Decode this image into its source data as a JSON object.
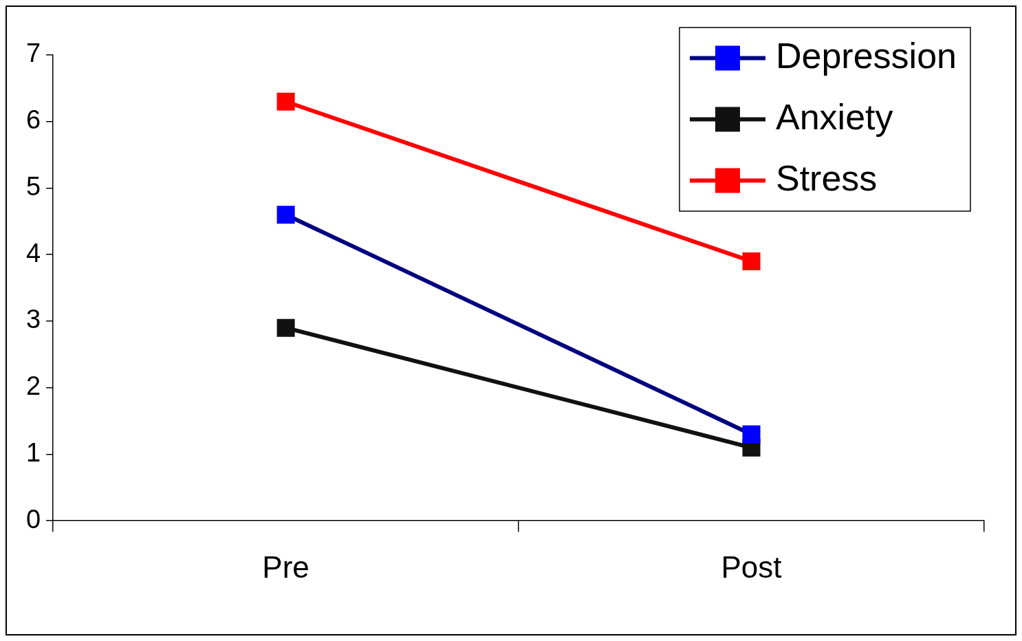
{
  "chart_data": {
    "type": "line",
    "categories": [
      "Pre",
      "Post"
    ],
    "series": [
      {
        "name": "Depression",
        "color": "#000080",
        "colors": [
          "#0000ff",
          "#0000ff"
        ],
        "values": [
          4.6,
          1.3
        ]
      },
      {
        "name": "Anxiety",
        "color": "#111111",
        "values": [
          2.9,
          1.1
        ]
      },
      {
        "name": "Stress",
        "color": "#ff0000",
        "values": [
          6.3,
          3.9
        ]
      }
    ],
    "ylim": [
      0,
      7
    ],
    "yticks": [
      0,
      1,
      2,
      3,
      4,
      5,
      6,
      7
    ],
    "grid": false,
    "legend": "top right",
    "marker": "square",
    "line_style": "solid"
  }
}
